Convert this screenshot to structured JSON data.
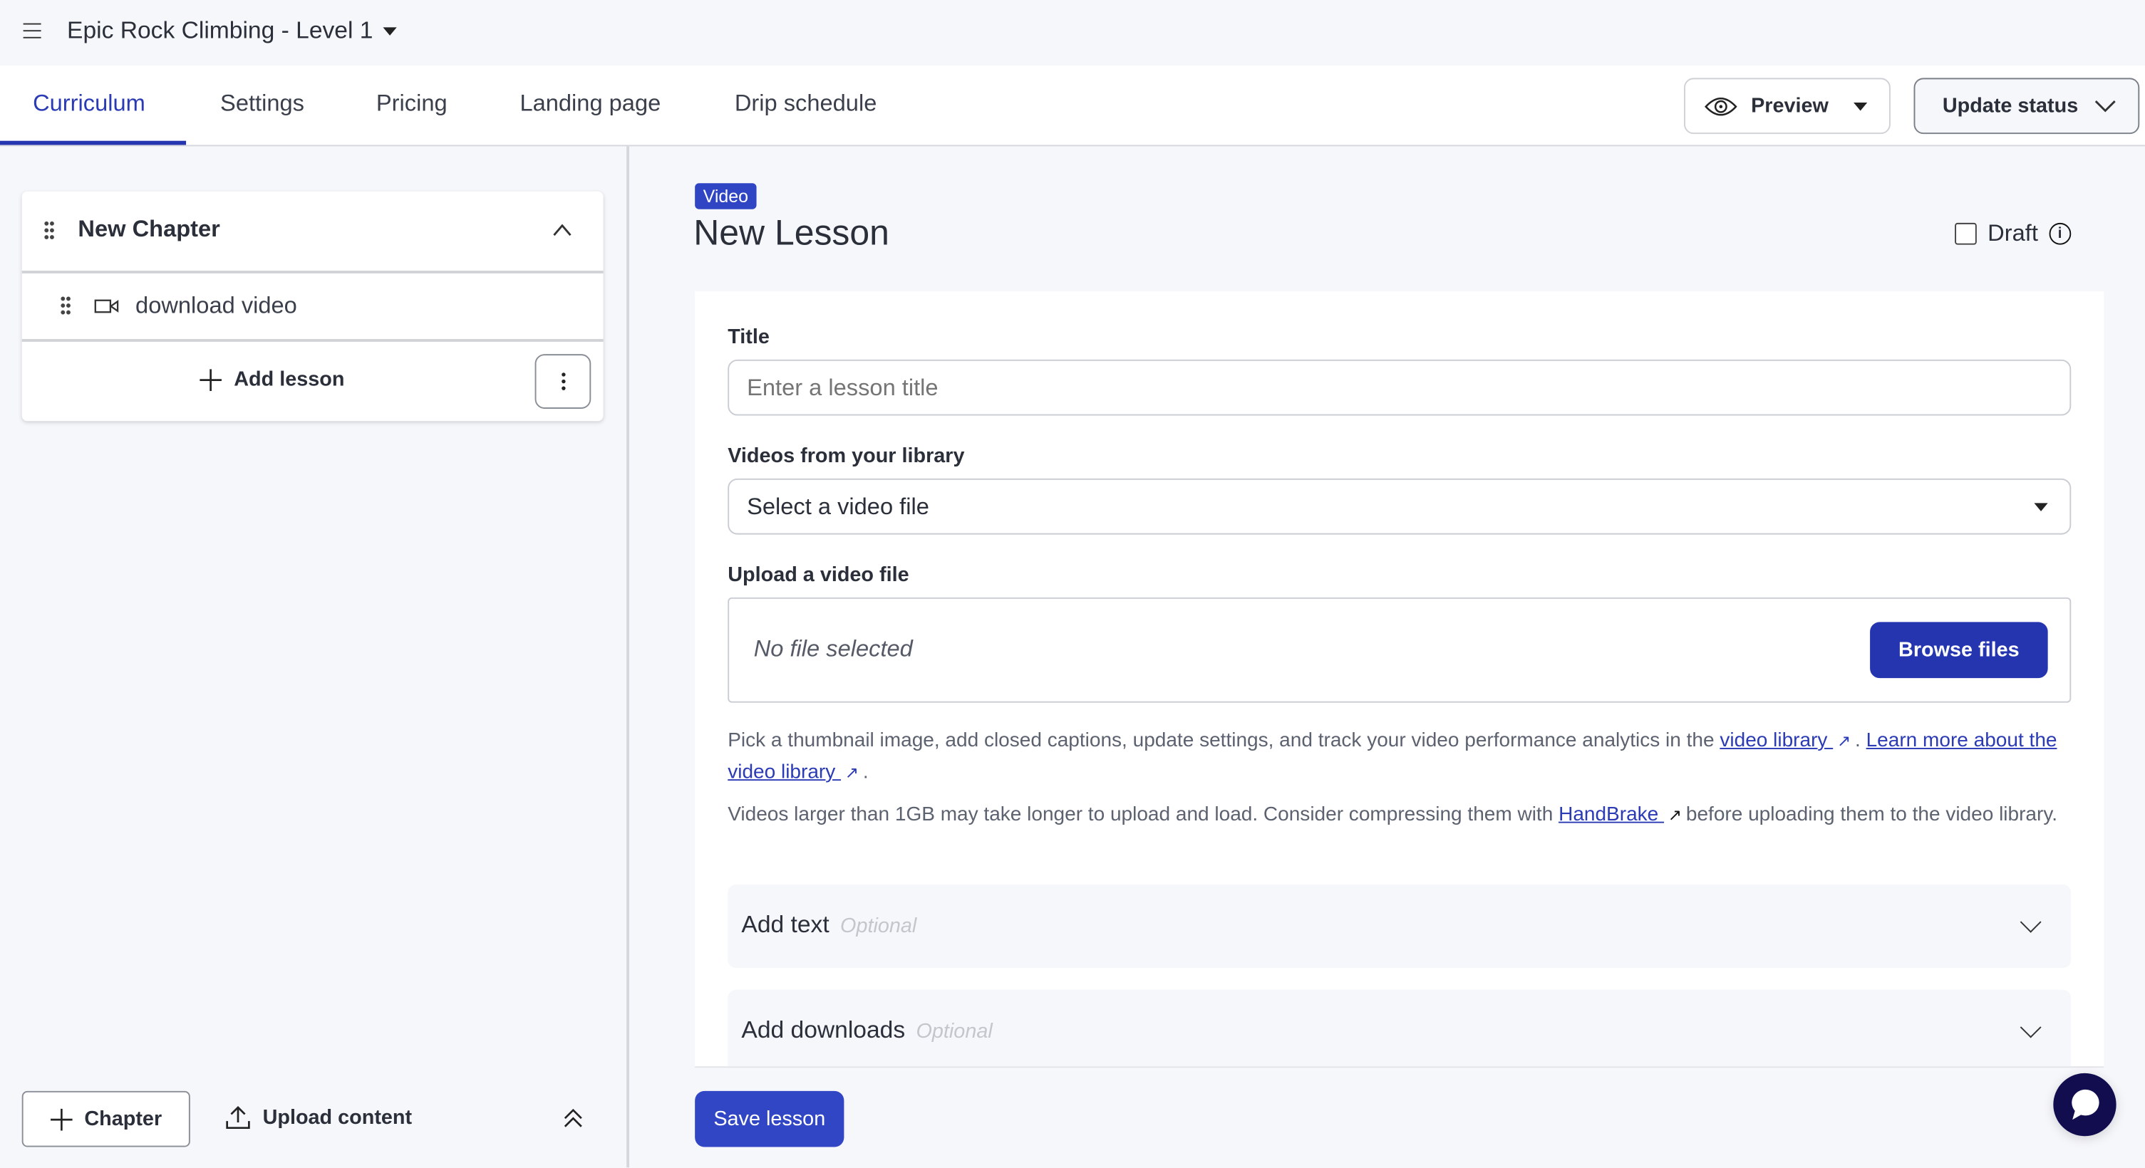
{
  "header": {
    "course_title": "Epic Rock Climbing - Level 1"
  },
  "tabs": [
    {
      "label": "Curriculum",
      "active": true
    },
    {
      "label": "Settings"
    },
    {
      "label": "Pricing"
    },
    {
      "label": "Landing page"
    },
    {
      "label": "Drip schedule"
    }
  ],
  "toolbar": {
    "preview_label": "Preview",
    "update_status_label": "Update status"
  },
  "sidebar": {
    "chapter_title": "New Chapter",
    "lessons": [
      {
        "name": "download video",
        "type": "video"
      }
    ],
    "add_lesson_label": "Add lesson",
    "add_chapter_label": "Chapter",
    "upload_content_label": "Upload content"
  },
  "lesson": {
    "type_badge": "Video",
    "title": "New Lesson",
    "draft_label": "Draft",
    "draft_checked": false,
    "title_label": "Title",
    "title_placeholder": "Enter a lesson title",
    "title_value": "",
    "library_label": "Videos from your library",
    "library_selected": "Select a video file",
    "upload_label": "Upload a video file",
    "no_file_text": "No file selected",
    "browse_label": "Browse files",
    "help1_pre": "Pick a thumbnail image, add closed captions, update settings, and track your video performance analytics in the ",
    "help1_link1": "video library ",
    "help1_mid": ". ",
    "help1_link2": "Learn more about the video library ",
    "help1_post": ".",
    "help2_pre": "Videos larger than 1GB may take longer to upload and load. Consider compressing them with ",
    "help2_link": "HandBrake ",
    "help2_post": "before uploading them to the video library.",
    "accordions": [
      {
        "title": "Add text",
        "optional": "Optional"
      },
      {
        "title": "Add downloads",
        "optional": "Optional"
      }
    ],
    "save_label": "Save lesson"
  },
  "colors": {
    "accent": "#2535b0",
    "badge": "#2f45c4",
    "chat": "#120d4f",
    "background": "#f6f7fb"
  }
}
